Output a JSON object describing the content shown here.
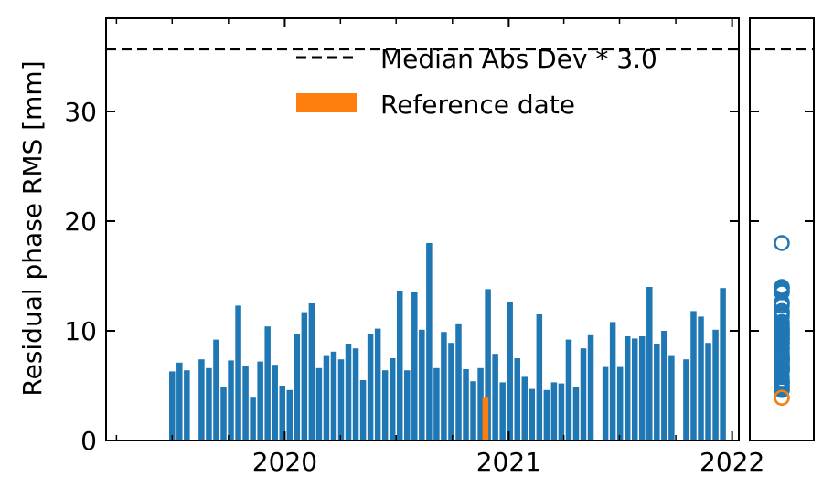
{
  "chart_data": [
    {
      "type": "bar",
      "ylabel": "Residual phase RMS [mm]",
      "xlabel": "",
      "title": "",
      "x_ticks": [
        "2020",
        "2021",
        "2022"
      ],
      "y_ticks": [
        "0",
        "10",
        "20",
        "30"
      ],
      "ylim": [
        0,
        38.5
      ],
      "xlim": [
        "2019-03-15",
        "2022-01-12"
      ],
      "threshold": {
        "value": 35.7,
        "label": "Median Abs Dev * 3.0",
        "color": "#000000",
        "style": "dashed"
      },
      "legend": {
        "position": "top-right",
        "entries": [
          "Median Abs Dev * 3.0",
          "Reference date"
        ]
      },
      "reference": {
        "date": "2020-11-24",
        "value": 3.9,
        "label": "Reference date",
        "color": "#ff7f0e"
      },
      "bar_color": "#1f77b4",
      "series": [
        {
          "dates": [
            "2019-07-01",
            "2019-07-13",
            "2019-07-25",
            "2019-08-18",
            "2019-08-30",
            "2019-09-11",
            "2019-09-23",
            "2019-10-05",
            "2019-10-17",
            "2019-10-29",
            "2019-11-10",
            "2019-11-22",
            "2019-12-04",
            "2019-12-16",
            "2019-12-28",
            "2020-01-09",
            "2020-01-21",
            "2020-02-02",
            "2020-02-14",
            "2020-02-26",
            "2020-03-09",
            "2020-03-21",
            "2020-04-02",
            "2020-04-14",
            "2020-04-26",
            "2020-05-08",
            "2020-05-20",
            "2020-06-01",
            "2020-06-13",
            "2020-06-25",
            "2020-07-07",
            "2020-07-19",
            "2020-07-31",
            "2020-08-12",
            "2020-08-24",
            "2020-09-05",
            "2020-09-17",
            "2020-09-29",
            "2020-10-11",
            "2020-10-23",
            "2020-11-04",
            "2020-11-16",
            "2020-11-28",
            "2020-12-10",
            "2020-12-22",
            "2021-01-03",
            "2021-01-15",
            "2021-01-27",
            "2021-02-08",
            "2021-02-20",
            "2021-03-04",
            "2021-03-16",
            "2021-03-28",
            "2021-04-09",
            "2021-04-21",
            "2021-05-03",
            "2021-05-15",
            "2021-06-08",
            "2021-06-20",
            "2021-07-02",
            "2021-07-14",
            "2021-07-26",
            "2021-08-07",
            "2021-08-19",
            "2021-08-31",
            "2021-09-12",
            "2021-09-24",
            "2021-10-18",
            "2021-10-30",
            "2021-11-11",
            "2021-11-23",
            "2021-12-05",
            "2021-12-17"
          ],
          "values": [
            6.3,
            7.1,
            6.4,
            7.4,
            6.6,
            9.2,
            4.9,
            7.3,
            12.3,
            6.8,
            3.9,
            7.2,
            10.4,
            6.9,
            5.0,
            4.6,
            9.7,
            11.7,
            12.5,
            6.6,
            7.7,
            8.1,
            7.4,
            8.8,
            8.4,
            5.5,
            9.7,
            10.2,
            6.4,
            7.5,
            13.6,
            6.4,
            13.5,
            10.1,
            18.0,
            6.6,
            9.9,
            8.9,
            10.6,
            6.5,
            5.4,
            6.6,
            13.8,
            7.9,
            5.3,
            12.6,
            7.5,
            5.8,
            4.7,
            11.5,
            4.6,
            5.3,
            5.2,
            9.2,
            4.9,
            8.4,
            9.6,
            6.7,
            10.8,
            6.7,
            9.5,
            9.3,
            9.5,
            14.0,
            8.8,
            10.0,
            7.7,
            7.4,
            11.8,
            11.3,
            8.9,
            10.1,
            13.9
          ]
        }
      ]
    },
    {
      "type": "scatter",
      "title": "",
      "xlabel": "",
      "ylabel": "",
      "ylim": [
        0,
        38.5
      ],
      "threshold": 35.7,
      "marker": "open-circle",
      "color": "#1f77b4",
      "reference_point": {
        "value": 3.9,
        "color": "#ff7f0e"
      },
      "values": [
        6.3,
        7.1,
        6.4,
        7.4,
        6.6,
        9.2,
        4.9,
        7.3,
        12.3,
        6.8,
        3.9,
        7.2,
        10.4,
        6.9,
        5.0,
        4.6,
        9.7,
        11.7,
        12.5,
        6.6,
        7.7,
        8.1,
        7.4,
        8.8,
        8.4,
        5.5,
        9.7,
        10.2,
        6.4,
        7.5,
        13.6,
        6.4,
        13.5,
        10.1,
        18.0,
        6.6,
        9.9,
        8.9,
        10.6,
        6.5,
        5.4,
        6.6,
        13.8,
        7.9,
        5.3,
        12.6,
        7.5,
        5.8,
        4.7,
        11.5,
        4.6,
        5.3,
        5.2,
        9.2,
        4.9,
        8.4,
        9.6,
        6.7,
        10.8,
        6.7,
        9.5,
        9.3,
        9.5,
        14.0,
        8.8,
        10.0,
        7.7,
        7.4,
        11.8,
        11.3,
        8.9,
        10.1,
        13.9
      ]
    }
  ]
}
